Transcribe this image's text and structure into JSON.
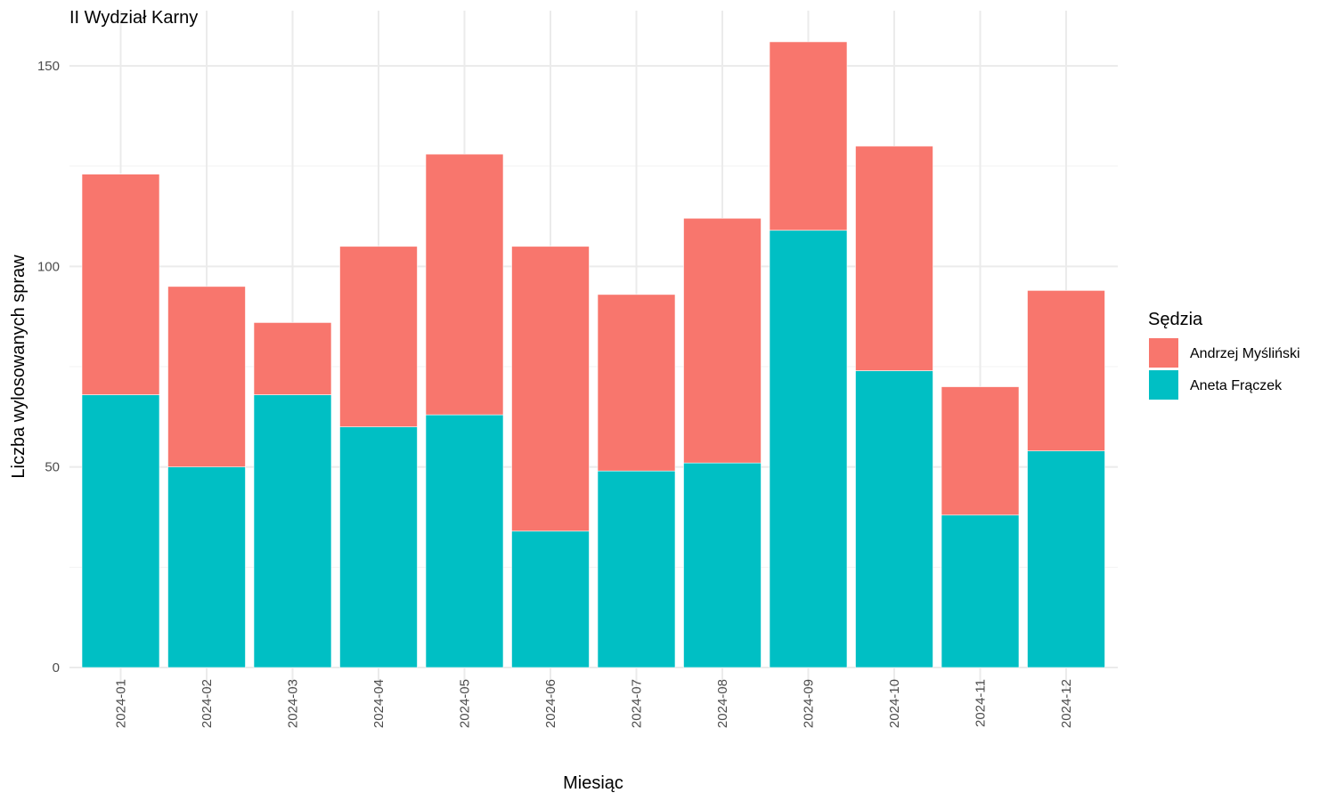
{
  "chart_data": {
    "type": "bar",
    "stacked": true,
    "title": "II Wydział Karny",
    "xlabel": "Miesiąc",
    "ylabel": "Liczba wylosowanych spraw",
    "ylim": [
      0,
      160
    ],
    "yticks": [
      0,
      50,
      100,
      150
    ],
    "grid": true,
    "legend": {
      "title": "Sędzia",
      "placement": "right"
    },
    "categories": [
      "2024-01",
      "2024-02",
      "2024-03",
      "2024-04",
      "2024-05",
      "2024-06",
      "2024-07",
      "2024-08",
      "2024-09",
      "2024-10",
      "2024-11",
      "2024-12"
    ],
    "series": [
      {
        "name": "Aneta Frączek",
        "color": "#00BFC4",
        "values": [
          68,
          50,
          68,
          60,
          63,
          34,
          49,
          51,
          109,
          74,
          38,
          54
        ]
      },
      {
        "name": "Andrzej Myśliński",
        "color": "#F8766D",
        "values": [
          55,
          45,
          18,
          45,
          65,
          71,
          44,
          61,
          47,
          56,
          32,
          40
        ]
      }
    ],
    "legend_order": [
      "Andrzej Myśliński",
      "Aneta Frączek"
    ]
  }
}
